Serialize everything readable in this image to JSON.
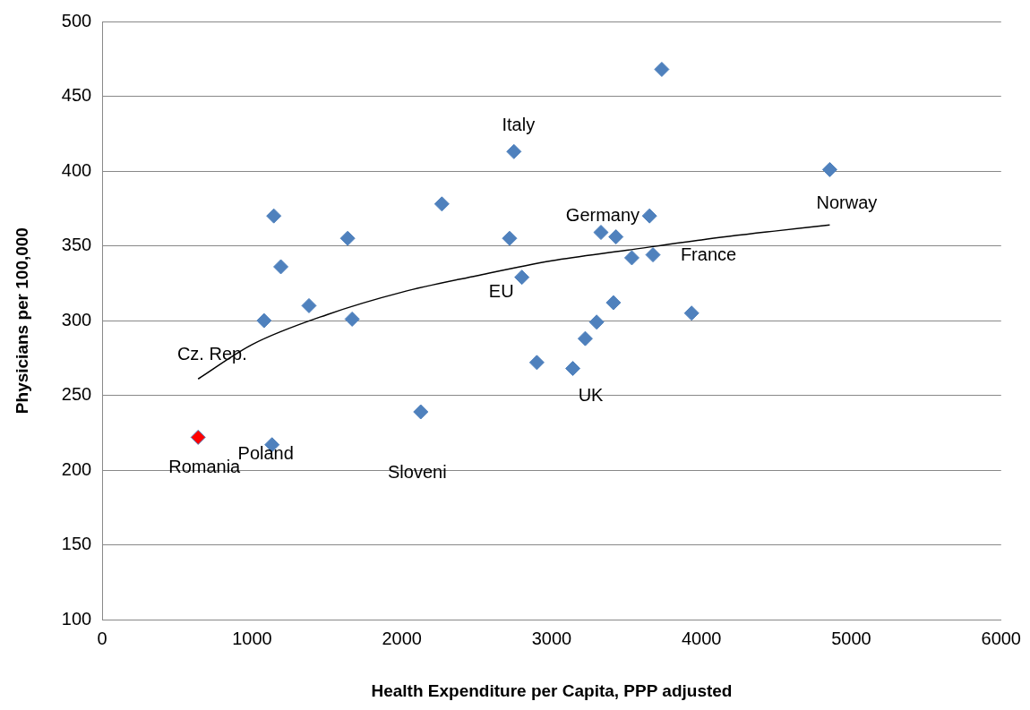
{
  "chart_data": {
    "type": "scatter",
    "xlabel": "Health Expenditure per Capita, PPP adjusted",
    "ylabel": "Physicians per 100,000",
    "xlim": [
      0,
      6000
    ],
    "xticks": [
      0,
      1000,
      2000,
      3000,
      4000,
      5000,
      6000
    ],
    "ylim": [
      100,
      500
    ],
    "yticks": [
      100,
      150,
      200,
      250,
      300,
      350,
      400,
      450,
      500
    ],
    "grid": "y",
    "legend": false,
    "marker": "diamond",
    "series": [
      {
        "type": "scatter",
        "color": "#4f81bd",
        "x": [
          640,
          1133,
          1145,
          1192,
          1080,
          1380,
          1638,
          1668,
          2126,
          2267,
          2748,
          2719,
          2801,
          2901,
          3141,
          3224,
          3300,
          3329,
          3535,
          3429,
          3653,
          3735,
          3676,
          3412,
          3934,
          4856
        ],
        "values": [
          222,
          217,
          370,
          336,
          300,
          310,
          355,
          301,
          239,
          378,
          413,
          355,
          329,
          272,
          268,
          288,
          299,
          359,
          342,
          356,
          370,
          468,
          344,
          312,
          305,
          401
        ],
        "colors": [
          "#ff0000",
          "#4f81bd",
          "#4f81bd",
          "#4f81bd",
          "#4f81bd",
          "#4f81bd",
          "#4f81bd",
          "#4f81bd",
          "#4f81bd",
          "#4f81bd",
          "#4f81bd",
          "#4f81bd",
          "#4f81bd",
          "#4f81bd",
          "#4f81bd",
          "#4f81bd",
          "#4f81bd",
          "#4f81bd",
          "#4f81bd",
          "#4f81bd",
          "#4f81bd",
          "#4f81bd",
          "#4f81bd",
          "#4f81bd",
          "#4f81bd",
          "#4f81bd"
        ]
      },
      {
        "type": "line",
        "color": "#000000",
        "marker": "none",
        "x": [
          640,
          1000,
          1500,
          2000,
          2500,
          3000,
          3500,
          4000,
          4500,
          4856
        ],
        "values": [
          261,
          284,
          304,
          319,
          330,
          340,
          347,
          354,
          360,
          364
        ]
      }
    ],
    "annotations": [
      {
        "text": "Italy",
        "x": 2748,
        "y": 413
      },
      {
        "text": "Germany",
        "x": 3329,
        "y": 359
      },
      {
        "text": "Norway",
        "x": 4856,
        "y": 401
      },
      {
        "text": "France",
        "x": 3676,
        "y": 344
      },
      {
        "text": "EU",
        "x": 2801,
        "y": 329
      },
      {
        "text": "UK",
        "x": 3141,
        "y": 268
      },
      {
        "text": "Cz. Rep.",
        "x": 1080,
        "y": 300
      },
      {
        "text": "Romania",
        "x": 640,
        "y": 222
      },
      {
        "text": "Poland",
        "x": 1133,
        "y": 217
      },
      {
        "text": "Sloveni",
        "x": 2126,
        "y": 239
      }
    ]
  }
}
